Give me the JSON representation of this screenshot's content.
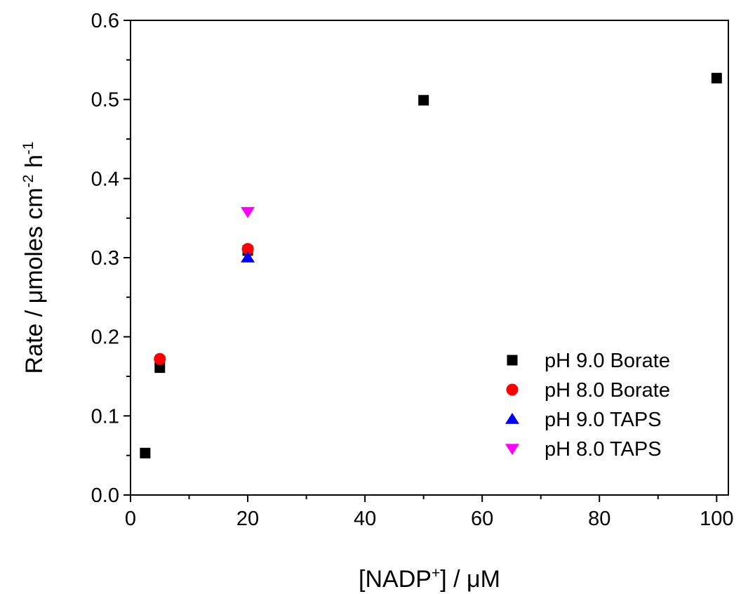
{
  "chart_data": {
    "type": "scatter",
    "xlabel": {
      "pre": "[NADP",
      "sup": "+",
      "post": "] / μM"
    },
    "ylabel": {
      "a": "Rate / μmoles cm",
      "sup1": "-2",
      "b": " h",
      "sup2": "-1"
    },
    "xlim": [
      0,
      102
    ],
    "ylim": [
      0,
      0.6
    ],
    "x_ticks": [
      0,
      20,
      40,
      60,
      80,
      100
    ],
    "x_tick_labels": [
      "0",
      "20",
      "40",
      "60",
      "80",
      "100"
    ],
    "y_ticks": [
      0.0,
      0.1,
      0.2,
      0.3,
      0.4,
      0.5,
      0.6
    ],
    "y_tick_labels": [
      "0.0",
      "0.1",
      "0.2",
      "0.3",
      "0.4",
      "0.5",
      "0.6"
    ],
    "grid": false,
    "legend_position": "bottom-right",
    "series": [
      {
        "name": "pH 9.0 Borate",
        "marker": "square",
        "color": "#000000",
        "points": [
          [
            2.5,
            0.053
          ],
          [
            5,
            0.161
          ],
          [
            20,
            0.309
          ],
          [
            50,
            0.499
          ],
          [
            100,
            0.527
          ]
        ]
      },
      {
        "name": "pH 8.0 Borate",
        "marker": "circle",
        "color": "#ff0000",
        "points": [
          [
            5,
            0.172
          ],
          [
            20,
            0.311
          ]
        ]
      },
      {
        "name": "pH 9.0 TAPS",
        "marker": "triangle-up",
        "color": "#0000ff",
        "points": [
          [
            20,
            0.3
          ]
        ]
      },
      {
        "name": "pH 8.0 TAPS",
        "marker": "triangle-down",
        "color": "#ff00ff",
        "points": [
          [
            20,
            0.358
          ]
        ]
      }
    ]
  }
}
